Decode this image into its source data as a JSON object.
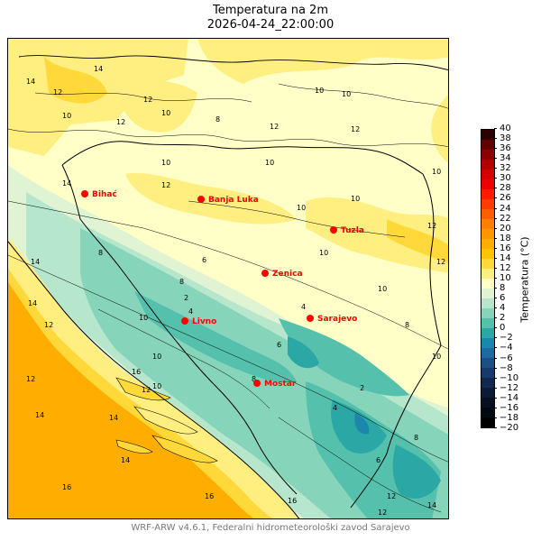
{
  "title": {
    "line1": "Temperatura na 2m",
    "line2": "2026-04-24_22:00:00"
  },
  "footer": "WRF-ARW v4.6.1, Federalni hidrometeorološki zavod Sarajevo",
  "colorbar": {
    "label": "Temperatura (°C)",
    "min": -20,
    "max": 40,
    "ticks": [
      "40",
      "38",
      "36",
      "34",
      "32",
      "30",
      "28",
      "26",
      "24",
      "22",
      "20",
      "18",
      "16",
      "14",
      "12",
      "10",
      "8",
      "6",
      "4",
      "2",
      "0",
      "−2",
      "−4",
      "−6",
      "−8",
      "−10",
      "−12",
      "−14",
      "−16",
      "−18",
      "−20"
    ],
    "colors": [
      "#2a0000",
      "#600000",
      "#8b0000",
      "#b20000",
      "#d40000",
      "#ee0000",
      "#ff1a00",
      "#ff3c00",
      "#ff5e00",
      "#ff7f00",
      "#ff9600",
      "#ffae00",
      "#ffc400",
      "#ffd93a",
      "#ffee80",
      "#ffffc8",
      "#e0f3d2",
      "#b6e6cc",
      "#86d5bb",
      "#55c1ac",
      "#2ba7a6",
      "#1c87ad",
      "#1c6aa0",
      "#1b4f86",
      "#163a69",
      "#11284e",
      "#0b1a36",
      "#06101f",
      "#020810",
      "#000000"
    ]
  },
  "cities": [
    {
      "name": "Bihać"
    },
    {
      "name": "Banja Luka"
    },
    {
      "name": "Tuzla"
    },
    {
      "name": "Zenica"
    },
    {
      "name": "Livno"
    },
    {
      "name": "Sarajevo"
    },
    {
      "name": "Mostar"
    }
  ],
  "contour_labels": [
    "14",
    "12",
    "10",
    "14",
    "12",
    "10",
    "12",
    "10",
    "12",
    "14",
    "10",
    "10",
    "8",
    "10",
    "8",
    "10",
    "12",
    "10",
    "12",
    "14",
    "12",
    "10",
    "8",
    "6",
    "4",
    "2",
    "4",
    "6",
    "8",
    "10",
    "12",
    "14",
    "16",
    "16",
    "14",
    "12",
    "10",
    "12",
    "14",
    "16",
    "2",
    "4",
    "6",
    "8",
    "12",
    "10",
    "14",
    "12",
    "10",
    "8",
    "10",
    "12",
    "14",
    "16",
    "10"
  ]
}
